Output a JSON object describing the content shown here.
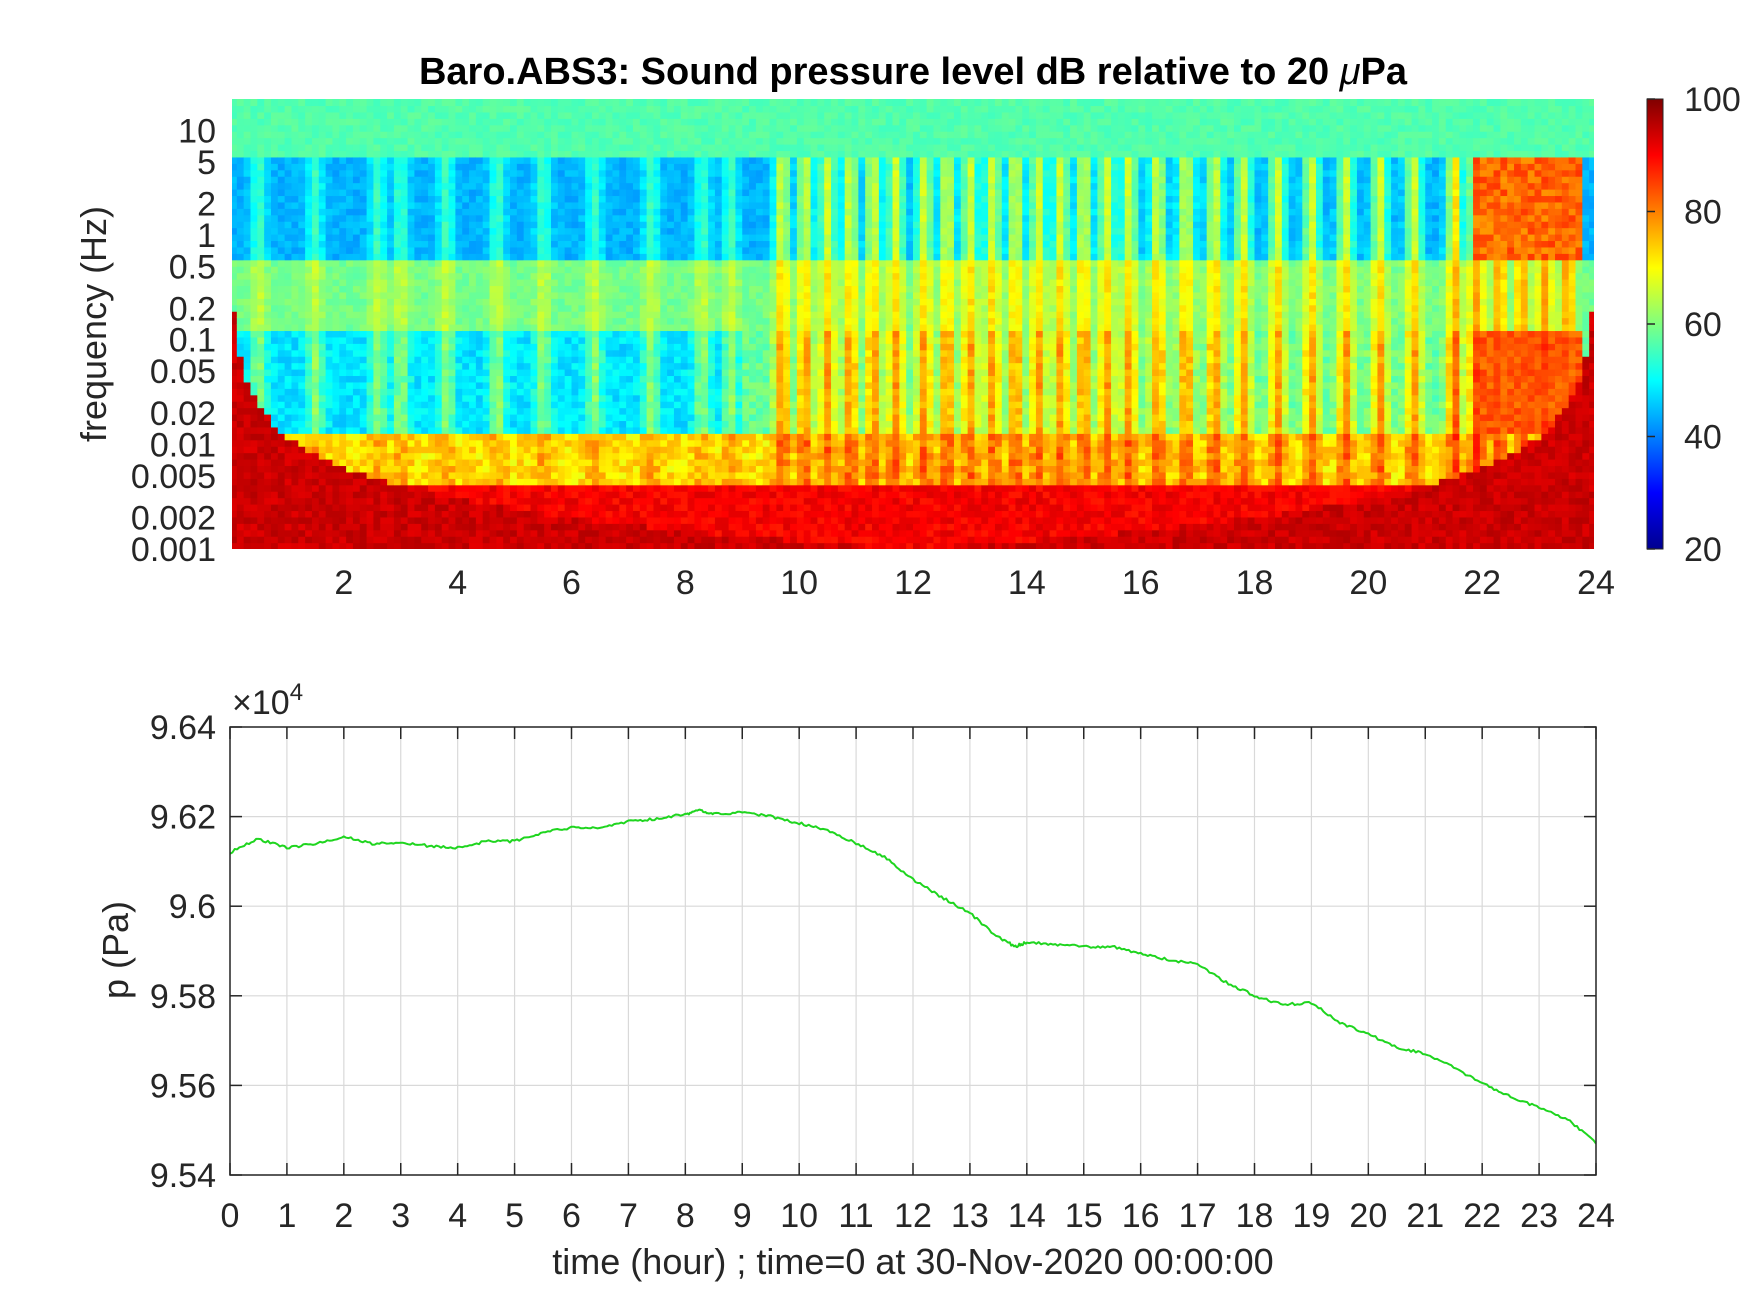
{
  "chart_data": [
    {
      "type": "heatmap",
      "title_prefix": "Baro.ABS3: Sound pressure level dB relative to 20 ",
      "title_mu": "μ",
      "title_suffix": "Pa",
      "ylabel": "frequency (Hz)",
      "y_scale": "log",
      "xlim": [
        0,
        24
      ],
      "ylim": [
        0.001,
        20
      ],
      "x_ticks": [
        2,
        4,
        6,
        8,
        10,
        12,
        14,
        16,
        18,
        20,
        22,
        24
      ],
      "x_tick_labels": [
        "2",
        "4",
        "6",
        "8",
        "10",
        "12",
        "14",
        "16",
        "18",
        "20",
        "22",
        "24"
      ],
      "y_ticks": [
        10,
        5,
        2,
        1,
        0.5,
        0.2,
        0.1,
        0.05,
        0.02,
        0.01,
        0.005,
        0.002,
        0.001
      ],
      "y_tick_labels": [
        "10",
        "5",
        "2",
        "1",
        "0.5",
        "0.2",
        "0.1",
        "0.05",
        "0.02",
        "0.01",
        "0.005",
        "0.002",
        "0.001"
      ],
      "colorbar": {
        "colormap": "jet",
        "range": [
          20,
          100
        ],
        "ticks": [
          100,
          80,
          60,
          40,
          20
        ],
        "tick_labels": [
          "100",
          "80",
          "60",
          "40",
          "20"
        ]
      },
      "description_levels": {
        "above_5Hz": 55,
        "band_1_to_5Hz_quiet": 42,
        "band_0p2Hz": 57,
        "band_0p02_to_0p1Hz_quiet": 45,
        "band_0p02_to_0p1Hz_active": 82,
        "below_0p005Hz": 88
      }
    },
    {
      "type": "line",
      "ylabel": "p (Pa)",
      "xlabel": "time (hour) ; time=0 at 30-Nov-2020 00:00:00",
      "exponent_label": "×10",
      "exponent_power": "4",
      "xlim": [
        0,
        24
      ],
      "ylim": [
        95400,
        96400
      ],
      "x_ticks": [
        0,
        1,
        2,
        3,
        4,
        5,
        6,
        7,
        8,
        9,
        10,
        11,
        12,
        13,
        14,
        15,
        16,
        17,
        18,
        19,
        20,
        21,
        22,
        23,
        24
      ],
      "x_tick_labels": [
        "0",
        "1",
        "2",
        "3",
        "4",
        "5",
        "6",
        "7",
        "8",
        "9",
        "10",
        "11",
        "12",
        "13",
        "14",
        "15",
        "16",
        "17",
        "18",
        "19",
        "20",
        "21",
        "22",
        "23",
        "24"
      ],
      "y_ticks": [
        96400,
        96200,
        96000,
        95800,
        95600,
        95400
      ],
      "y_tick_labels": [
        "9.64",
        "9.62",
        "9.6",
        "9.58",
        "9.56",
        "9.54"
      ],
      "grid": true,
      "series": [
        {
          "color": "#1fd51f",
          "x": [
            0,
            0.5,
            1,
            1.5,
            2,
            2.5,
            3,
            3.5,
            4,
            4.5,
            5,
            5.5,
            6,
            6.5,
            7,
            7.5,
            8,
            8.25,
            8.5,
            9,
            9.5,
            10,
            10.5,
            11,
            11.5,
            12,
            12.5,
            13,
            13.5,
            13.8,
            14,
            14.5,
            15,
            15.5,
            16,
            16.5,
            17,
            17.5,
            18,
            18.5,
            19,
            19.5,
            20,
            20.5,
            21,
            21.5,
            22,
            22.5,
            23,
            23.5,
            24
          ],
          "y": [
            96120,
            96150,
            96130,
            96140,
            96155,
            96140,
            96140,
            96135,
            96130,
            96145,
            96145,
            96165,
            96175,
            96175,
            96190,
            96195,
            96205,
            96215,
            96205,
            96210,
            96200,
            96185,
            96170,
            96140,
            96110,
            96060,
            96020,
            95985,
            95930,
            95910,
            95920,
            95915,
            95910,
            95910,
            95895,
            95880,
            95870,
            95830,
            95800,
            95780,
            95785,
            95740,
            95715,
            95685,
            95670,
            95640,
            95605,
            95575,
            95550,
            95525,
            95470
          ]
        }
      ]
    }
  ]
}
